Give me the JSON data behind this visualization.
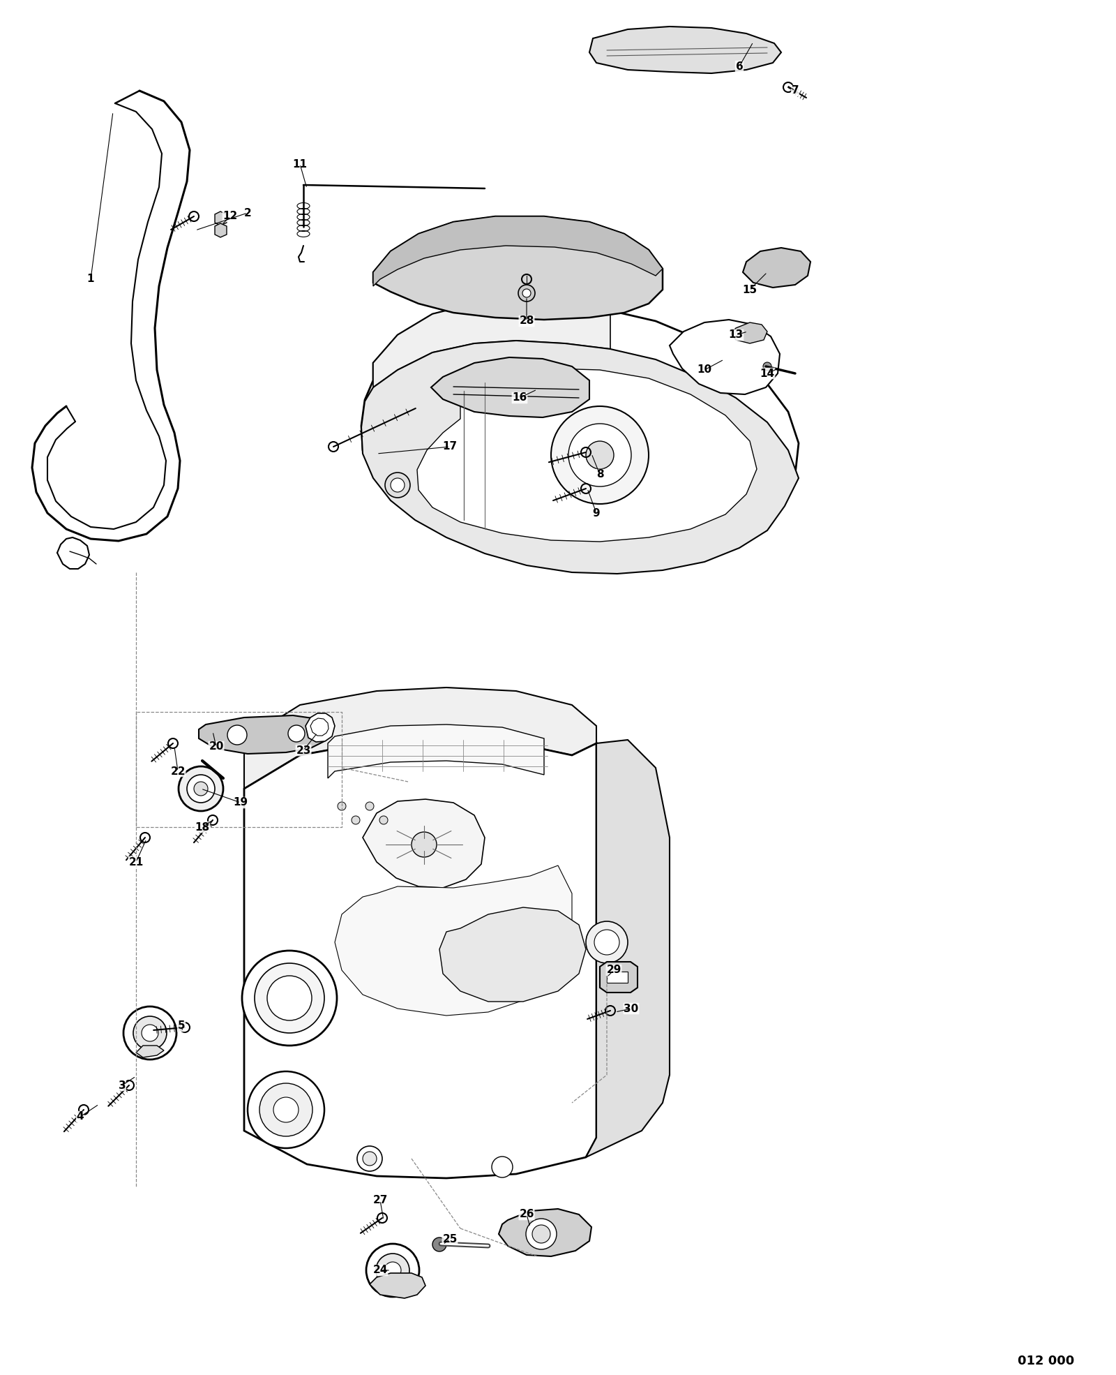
{
  "bg_color": "#ffffff",
  "line_color": "#000000",
  "fig_width": 16.0,
  "fig_height": 19.7,
  "diagram_id": "012 000",
  "label_fontsize": 11,
  "label_positions": [
    [
      "1",
      130,
      400
    ],
    [
      "2",
      355,
      305
    ],
    [
      "3",
      175,
      1555
    ],
    [
      "4",
      115,
      1600
    ],
    [
      "5",
      260,
      1470
    ],
    [
      "6",
      1060,
      95
    ],
    [
      "7",
      1140,
      130
    ],
    [
      "8",
      860,
      680
    ],
    [
      "9",
      855,
      735
    ],
    [
      "10",
      1010,
      530
    ],
    [
      "11",
      430,
      235
    ],
    [
      "12",
      330,
      310
    ],
    [
      "13",
      1055,
      480
    ],
    [
      "14",
      1100,
      535
    ],
    [
      "15",
      1075,
      415
    ],
    [
      "16",
      745,
      570
    ],
    [
      "17",
      645,
      640
    ],
    [
      "18",
      290,
      1185
    ],
    [
      "19",
      345,
      1150
    ],
    [
      "20",
      310,
      1070
    ],
    [
      "21",
      195,
      1235
    ],
    [
      "22",
      255,
      1105
    ],
    [
      "23",
      435,
      1075
    ],
    [
      "24",
      545,
      1820
    ],
    [
      "25",
      645,
      1775
    ],
    [
      "26",
      755,
      1740
    ],
    [
      "27",
      545,
      1720
    ],
    [
      "28",
      755,
      460
    ],
    [
      "29",
      880,
      1390
    ],
    [
      "30",
      905,
      1445
    ]
  ]
}
